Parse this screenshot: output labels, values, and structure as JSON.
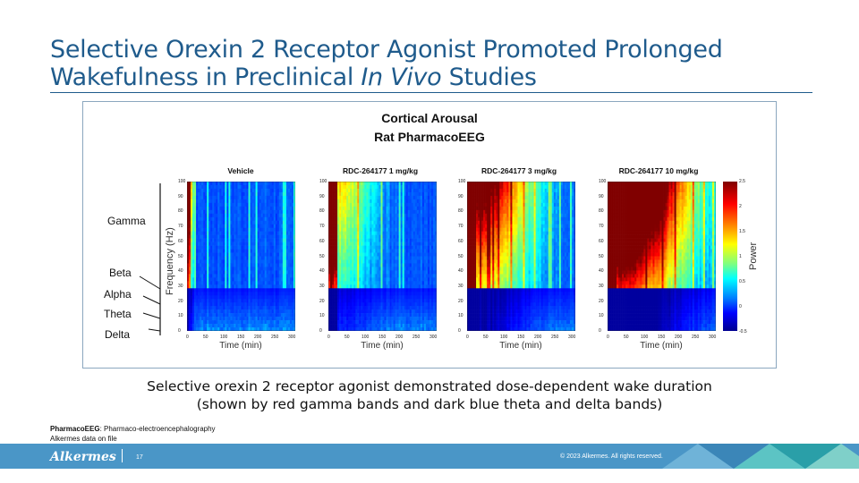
{
  "slide": {
    "title_line1": "Selective Orexin 2 Receptor Agonist Promoted Prolonged",
    "title_line2_a": "Wakefulness in Preclinical ",
    "title_line2_em": "In Vivo",
    "title_line2_b": " Studies"
  },
  "figure": {
    "title_line1": "Cortical Arousal",
    "title_line2": "Rat PharmacoEEG",
    "freq_axis_label": "Frequency (Hz)",
    "time_axis_label": "Time (min)",
    "colorbar_label": "Power",
    "bands": [
      "Gamma",
      "Beta",
      "Alpha",
      "Theta",
      "Delta"
    ],
    "freq_ticks": [
      "100",
      "90",
      "80",
      "70",
      "60",
      "50",
      "40",
      "30",
      "20",
      "10",
      "0"
    ],
    "time_ticks": [
      "0",
      "50",
      "100",
      "150",
      "200",
      "250",
      "300"
    ],
    "colorbar_ticks": [
      "2.5",
      "2",
      "1.5",
      "1",
      "0.5",
      "0",
      "-0.5"
    ],
    "panels": [
      {
        "title": "Vehicle",
        "dose_level": 0
      },
      {
        "title": "RDC-264177 1 mg/kg",
        "dose_level": 1
      },
      {
        "title": "RDC-264177 3 mg/kg",
        "dose_level": 2
      },
      {
        "title": "RDC-264177 10 mg/kg",
        "dose_level": 3
      }
    ]
  },
  "caption": {
    "line1": "Selective orexin 2 receptor agonist demonstrated dose-dependent wake duration",
    "line2": "(shown by red gamma bands and dark blue theta and delta bands)"
  },
  "footnote": {
    "abbrev": "PharmacoEEG",
    "definition": ": Pharmaco-electroencephalography",
    "source": "Alkermes data on file"
  },
  "footer": {
    "logo_text": "Alkermes",
    "page_number": "17",
    "copyright": "© 2023 Alkermes. All rights reserved.",
    "colors": {
      "bar": "#4a96c7",
      "accent": "#1f5b8c"
    }
  }
}
